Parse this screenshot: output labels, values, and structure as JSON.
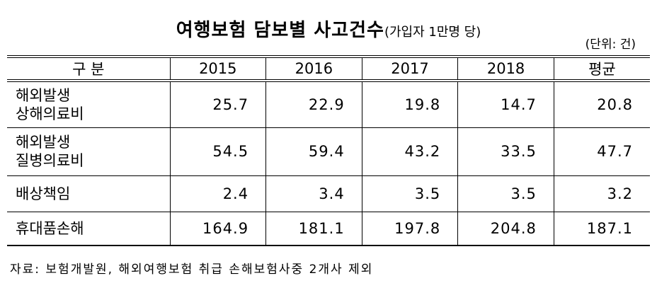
{
  "header": {
    "title": "여행보험 담보별 사고건수",
    "subtitle": "(가입자 1만명 당)",
    "unit": "(단위: 건)"
  },
  "table": {
    "columns": [
      "구   분",
      "2015",
      "2016",
      "2017",
      "2018",
      "평균"
    ],
    "rows": [
      [
        "해외발생\n상해의료비",
        "25.7",
        "22.9",
        "19.8",
        "14.7",
        "20.8"
      ],
      [
        "해외발생\n질병의료비",
        "54.5",
        "59.4",
        "43.2",
        "33.5",
        "47.7"
      ],
      [
        "배상책임",
        "2.4",
        "3.4",
        "3.5",
        "3.5",
        "3.2"
      ],
      [
        "휴대품손해",
        "164.9",
        "181.1",
        "197.8",
        "204.8",
        "187.1"
      ]
    ]
  },
  "footer": {
    "note": "자료: 보험개발원, 해외여행보험 취급 손해보험사중 2개사 제외"
  }
}
